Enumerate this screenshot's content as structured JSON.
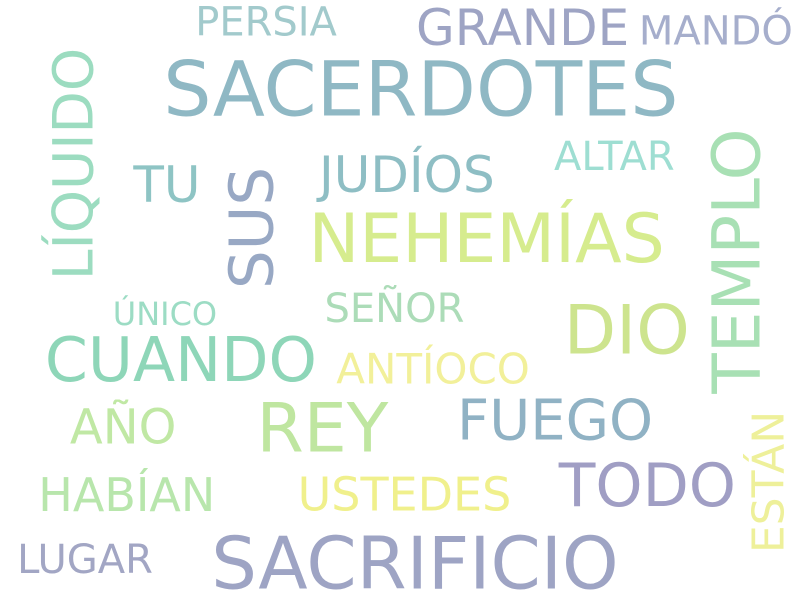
{
  "background": "#ffffff",
  "words": [
    {
      "text": "SACERDOTES",
      "color": "#8fb8c4",
      "size": 92
    },
    {
      "text": "SACRIFICIO",
      "color": "#9ea4c4",
      "size": 88
    },
    {
      "text": "NEHEMÍAS",
      "color": "#d6ec8e",
      "size": 80
    },
    {
      "text": "REY",
      "color": "#bfe6a0",
      "size": 84
    },
    {
      "text": "DIO",
      "color": "#cde48e",
      "size": 84
    },
    {
      "text": "CUANDO",
      "color": "#8ed6b8",
      "size": 76
    },
    {
      "text": "TODO",
      "color": "#a09ec4",
      "size": 72
    },
    {
      "text": "FUEGO",
      "color": "#90b2c4",
      "size": 72
    },
    {
      "text": "GRANDE",
      "color": "#9ea4c4",
      "size": 58
    },
    {
      "text": "JUDÍOS",
      "color": "#8ebec4",
      "size": 58
    },
    {
      "text": "HABÍAN",
      "color": "#b8e6ac",
      "size": 56
    },
    {
      "text": "USTEDES",
      "color": "#f0f08c",
      "size": 54
    },
    {
      "text": "AÑO",
      "color": "#c0e8a4",
      "size": 56
    },
    {
      "text": "TU",
      "color": "#8ec4c4",
      "size": 58
    },
    {
      "text": "PERSIA",
      "color": "#a2cacc",
      "size": 48
    },
    {
      "text": "MANDÓ",
      "color": "#a6aecc",
      "size": 42
    },
    {
      "text": "ALTAR",
      "color": "#9eded2",
      "size": 46
    },
    {
      "text": "SEÑOR",
      "color": "#acdcb8",
      "size": 46
    },
    {
      "text": "ANTÍOCO",
      "color": "#f2f09a",
      "size": 46
    },
    {
      "text": "LUGAR",
      "color": "#a2a6c4",
      "size": 46
    },
    {
      "text": "ÚNICO",
      "color": "#9cdcc4",
      "size": 38
    },
    {
      "text": "LÍQUIDO",
      "color": "#9cdcc0",
      "size": 62,
      "rotated": true
    },
    {
      "text": "SUS",
      "color": "#98a8c4",
      "size": 62,
      "rotated": true
    },
    {
      "text": "TEMPLO",
      "color": "#a8e0b4",
      "size": 66,
      "rotated": true
    },
    {
      "text": "ESTÁN",
      "color": "#eef09a",
      "size": 42,
      "rotated": true
    }
  ]
}
